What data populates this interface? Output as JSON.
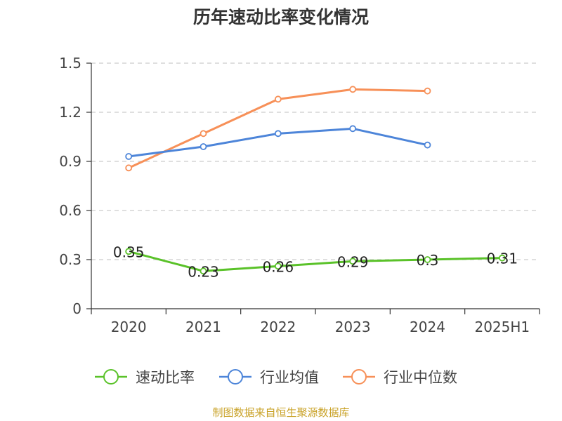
{
  "chart_data": {
    "type": "line",
    "title": "历年速动比率变化情况",
    "categories": [
      "2020",
      "2021",
      "2022",
      "2023",
      "2024",
      "2025H1"
    ],
    "ylim": [
      0,
      1.5
    ],
    "yticks": [
      "0",
      "0.3",
      "0.6",
      "0.9",
      "1.2",
      "1.5"
    ],
    "grid": true,
    "legend_position": "bottom",
    "series": [
      {
        "name": "速动比率",
        "color": "#5ac229",
        "values": [
          0.35,
          0.23,
          0.26,
          0.29,
          0.3,
          0.31
        ],
        "labels": [
          "0.35",
          "0.23",
          "0.26",
          "0.29",
          "0.3",
          "0.31"
        ]
      },
      {
        "name": "行业均值",
        "color": "#4d85d9",
        "values": [
          0.93,
          0.99,
          1.07,
          1.1,
          1.0,
          null
        ]
      },
      {
        "name": "行业中位数",
        "color": "#f79058",
        "values": [
          0.86,
          1.07,
          1.28,
          1.34,
          1.33,
          null
        ]
      }
    ]
  },
  "source": "制图数据来自恒生聚源数据库"
}
